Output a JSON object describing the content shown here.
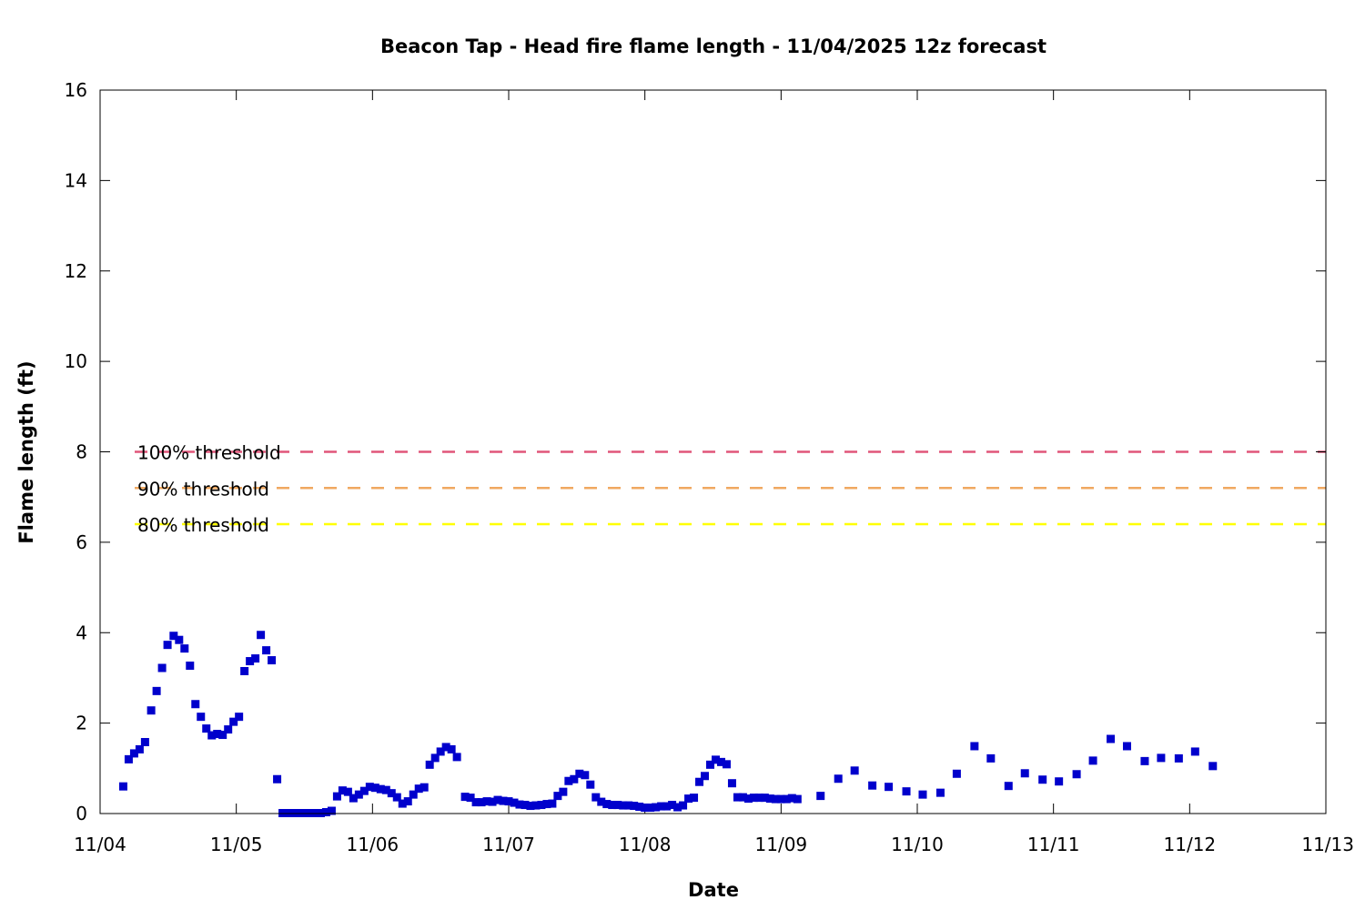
{
  "chart_data": {
    "type": "scatter",
    "title": "Beacon Tap - Head fire flame length - 11/04/2025 12z forecast",
    "xlabel": "Date",
    "ylabel": "Flame length (ft)",
    "x_unit": "days",
    "xlim": [
      "11/04",
      "11/13"
    ],
    "ylim": [
      0,
      16
    ],
    "x_ticks": [
      "11/04",
      "11/05",
      "11/06",
      "11/07",
      "11/08",
      "11/09",
      "11/10",
      "11/11",
      "11/12",
      "11/13"
    ],
    "y_ticks": [
      "0",
      "2",
      "4",
      "6",
      "8",
      "10",
      "12",
      "14",
      "16"
    ],
    "grid": false,
    "marker_color": "#0000cc",
    "thresholds": [
      {
        "label": "100% threshold",
        "value": 8.0,
        "color": "#e0567a"
      },
      {
        "label": "90% threshold",
        "value": 7.2,
        "color": "#f0a860"
      },
      {
        "label": "80% threshold",
        "value": 6.4,
        "color": "#ffff00"
      }
    ],
    "series": [
      {
        "points": [
          [
            0.17,
            0.6
          ],
          [
            0.21,
            1.2
          ],
          [
            0.25,
            1.33
          ],
          [
            0.29,
            1.42
          ],
          [
            0.33,
            1.58
          ],
          [
            0.375,
            2.28
          ],
          [
            0.415,
            2.71
          ],
          [
            0.455,
            3.22
          ],
          [
            0.495,
            3.73
          ],
          [
            0.54,
            3.93
          ],
          [
            0.58,
            3.84
          ],
          [
            0.62,
            3.65
          ],
          [
            0.66,
            3.27
          ],
          [
            0.7,
            2.42
          ],
          [
            0.74,
            2.14
          ],
          [
            0.78,
            1.88
          ],
          [
            0.82,
            1.73
          ],
          [
            0.86,
            1.76
          ],
          [
            0.9,
            1.74
          ],
          [
            0.94,
            1.86
          ],
          [
            0.98,
            2.03
          ],
          [
            1.02,
            2.14
          ],
          [
            1.06,
            3.15
          ],
          [
            1.1,
            3.37
          ],
          [
            1.14,
            3.43
          ],
          [
            1.18,
            3.95
          ],
          [
            1.22,
            3.61
          ],
          [
            1.26,
            3.39
          ],
          [
            1.3,
            0.76
          ],
          [
            1.34,
            0.01
          ],
          [
            1.38,
            0.01
          ],
          [
            1.42,
            0.01
          ],
          [
            1.46,
            0.01
          ],
          [
            1.5,
            0.01
          ],
          [
            1.54,
            0.01
          ],
          [
            1.58,
            0.01
          ],
          [
            1.62,
            0.01
          ],
          [
            1.66,
            0.03
          ],
          [
            1.7,
            0.06
          ],
          [
            1.74,
            0.38
          ],
          [
            1.78,
            0.51
          ],
          [
            1.82,
            0.48
          ],
          [
            1.86,
            0.34
          ],
          [
            1.9,
            0.42
          ],
          [
            1.94,
            0.5
          ],
          [
            1.98,
            0.59
          ],
          [
            2.02,
            0.57
          ],
          [
            2.06,
            0.54
          ],
          [
            2.1,
            0.52
          ],
          [
            2.14,
            0.45
          ],
          [
            2.18,
            0.36
          ],
          [
            2.22,
            0.22
          ],
          [
            2.26,
            0.27
          ],
          [
            2.3,
            0.42
          ],
          [
            2.34,
            0.55
          ],
          [
            2.38,
            0.58
          ],
          [
            2.42,
            1.08
          ],
          [
            2.46,
            1.23
          ],
          [
            2.5,
            1.37
          ],
          [
            2.54,
            1.47
          ],
          [
            2.58,
            1.42
          ],
          [
            2.62,
            1.25
          ],
          [
            2.68,
            0.37
          ],
          [
            2.72,
            0.35
          ],
          [
            2.76,
            0.25
          ],
          [
            2.8,
            0.25
          ],
          [
            2.84,
            0.27
          ],
          [
            2.88,
            0.26
          ],
          [
            2.92,
            0.3
          ],
          [
            2.96,
            0.28
          ],
          [
            3.0,
            0.27
          ],
          [
            3.04,
            0.24
          ],
          [
            3.08,
            0.2
          ],
          [
            3.12,
            0.19
          ],
          [
            3.16,
            0.17
          ],
          [
            3.2,
            0.18
          ],
          [
            3.24,
            0.19
          ],
          [
            3.28,
            0.21
          ],
          [
            3.32,
            0.22
          ],
          [
            3.36,
            0.39
          ],
          [
            3.4,
            0.48
          ],
          [
            3.44,
            0.72
          ],
          [
            3.48,
            0.76
          ],
          [
            3.52,
            0.88
          ],
          [
            3.56,
            0.85
          ],
          [
            3.6,
            0.64
          ],
          [
            3.64,
            0.36
          ],
          [
            3.68,
            0.26
          ],
          [
            3.72,
            0.21
          ],
          [
            3.76,
            0.19
          ],
          [
            3.8,
            0.19
          ],
          [
            3.84,
            0.18
          ],
          [
            3.88,
            0.18
          ],
          [
            3.92,
            0.17
          ],
          [
            3.96,
            0.15
          ],
          [
            4.0,
            0.13
          ],
          [
            4.04,
            0.13
          ],
          [
            4.08,
            0.14
          ],
          [
            4.12,
            0.16
          ],
          [
            4.16,
            0.16
          ],
          [
            4.2,
            0.19
          ],
          [
            4.24,
            0.14
          ],
          [
            4.28,
            0.18
          ],
          [
            4.32,
            0.33
          ],
          [
            4.36,
            0.35
          ],
          [
            4.4,
            0.7
          ],
          [
            4.44,
            0.83
          ],
          [
            4.48,
            1.08
          ],
          [
            4.52,
            1.19
          ],
          [
            4.56,
            1.14
          ],
          [
            4.6,
            1.09
          ],
          [
            4.64,
            0.67
          ],
          [
            4.68,
            0.36
          ],
          [
            4.72,
            0.36
          ],
          [
            4.76,
            0.33
          ],
          [
            4.8,
            0.35
          ],
          [
            4.84,
            0.35
          ],
          [
            4.88,
            0.35
          ],
          [
            4.92,
            0.33
          ],
          [
            4.96,
            0.32
          ],
          [
            5.0,
            0.32
          ],
          [
            5.04,
            0.32
          ],
          [
            5.08,
            0.34
          ],
          [
            5.12,
            0.32
          ],
          [
            5.29,
            0.39
          ],
          [
            5.42,
            0.77
          ],
          [
            5.54,
            0.95
          ],
          [
            5.67,
            0.62
          ],
          [
            5.79,
            0.59
          ],
          [
            5.92,
            0.49
          ],
          [
            6.04,
            0.42
          ],
          [
            6.17,
            0.46
          ],
          [
            6.29,
            0.88
          ],
          [
            6.42,
            1.49
          ],
          [
            6.54,
            1.22
          ],
          [
            6.67,
            0.61
          ],
          [
            6.79,
            0.89
          ],
          [
            6.92,
            0.75
          ],
          [
            7.04,
            0.71
          ],
          [
            7.17,
            0.87
          ],
          [
            7.29,
            1.17
          ],
          [
            7.42,
            1.65
          ],
          [
            7.54,
            1.49
          ],
          [
            7.67,
            1.16
          ],
          [
            7.79,
            1.23
          ],
          [
            7.92,
            1.22
          ],
          [
            8.04,
            1.37
          ],
          [
            8.17,
            1.05
          ]
        ]
      }
    ]
  }
}
